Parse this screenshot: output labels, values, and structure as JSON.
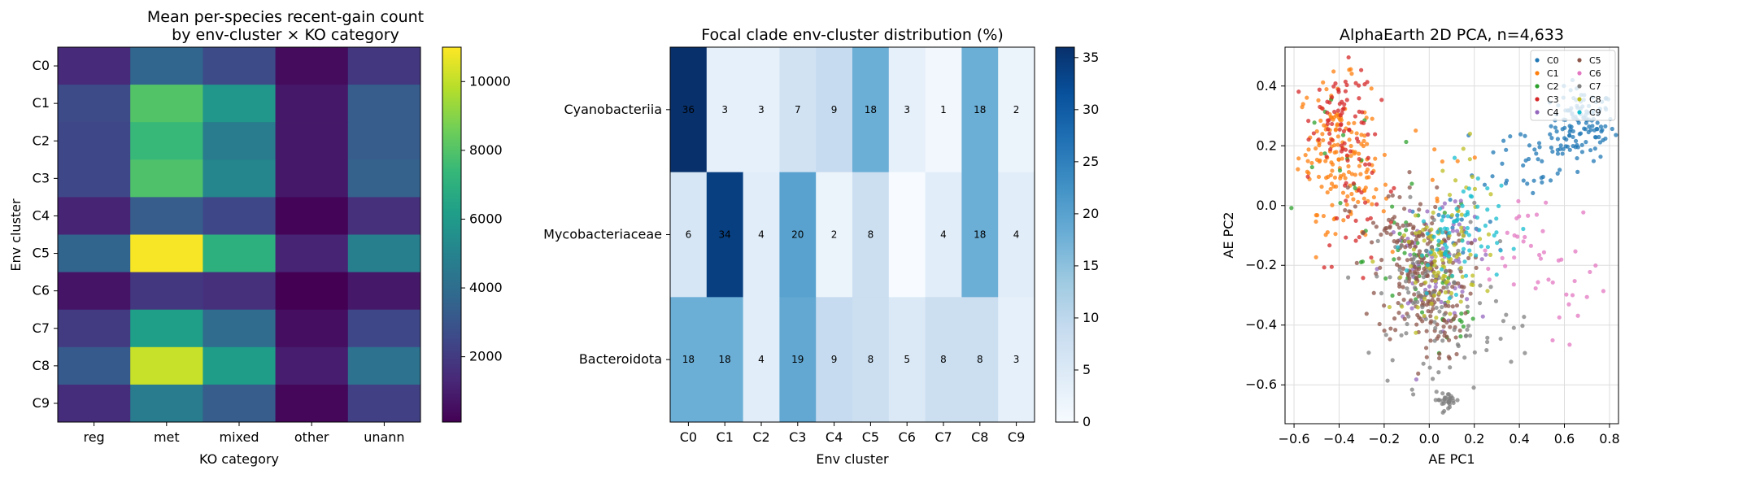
{
  "chart_data": [
    {
      "type": "heatmap",
      "title": "Mean per-species recent-gain count\nby env-cluster × KO category",
      "xlabel": "KO category",
      "ylabel": "Env cluster",
      "x_categories": [
        "reg",
        "met",
        "mixed",
        "other",
        "unann"
      ],
      "y_categories": [
        "C0",
        "C1",
        "C2",
        "C3",
        "C4",
        "C5",
        "C6",
        "C7",
        "C8",
        "C9"
      ],
      "values": [
        [
          1400,
          3700,
          2600,
          450,
          1900
        ],
        [
          2600,
          8000,
          5800,
          800,
          3300
        ],
        [
          2500,
          7400,
          4600,
          800,
          3300
        ],
        [
          2500,
          7900,
          5100,
          800,
          3500
        ],
        [
          1200,
          3300,
          2500,
          200,
          1600
        ],
        [
          3600,
          10900,
          7000,
          1200,
          4800
        ],
        [
          700,
          1900,
          1600,
          100,
          800
        ],
        [
          2000,
          6200,
          3900,
          500,
          2500
        ],
        [
          3200,
          10100,
          6100,
          1000,
          4200
        ],
        [
          1500,
          4600,
          3300,
          300,
          2200
        ]
      ],
      "colormap": "viridis",
      "colorbar_range": [
        100,
        11000
      ],
      "colorbar_ticks": [
        "2000",
        "4000",
        "6000",
        "8000",
        "10000"
      ]
    },
    {
      "type": "heatmap",
      "title": "Focal clade env-cluster distribution (%)",
      "xlabel": "Env cluster",
      "ylabel": "",
      "x_categories": [
        "C0",
        "C1",
        "C2",
        "C3",
        "C4",
        "C5",
        "C6",
        "C7",
        "C8",
        "C9"
      ],
      "y_categories": [
        "Cyanobacteriia",
        "Mycobacteriaceae",
        "Bacteroidota"
      ],
      "values": [
        [
          36,
          3,
          3,
          7,
          9,
          18,
          3,
          1,
          18,
          2
        ],
        [
          6,
          34,
          4,
          20,
          2,
          8,
          0,
          4,
          18,
          4
        ],
        [
          18,
          18,
          4,
          19,
          9,
          8,
          5,
          8,
          8,
          3
        ]
      ],
      "cell_labels": [
        [
          "36",
          "3",
          "3",
          "7",
          "9",
          "18",
          "3",
          "1",
          "18",
          "2"
        ],
        [
          "6",
          "34",
          "4",
          "20",
          "2",
          "8",
          "",
          "4",
          "18",
          "4"
        ],
        [
          "18",
          "18",
          "4",
          "19",
          "9",
          "8",
          "5",
          "8",
          "8",
          "3"
        ]
      ],
      "colormap": "Blues",
      "colorbar_range": [
        0,
        36
      ],
      "colorbar_ticks": [
        "0",
        "5",
        "10",
        "15",
        "20",
        "25",
        "30",
        "35"
      ]
    },
    {
      "type": "scatter",
      "title": "AlphaEarth 2D PCA, n=4,633",
      "xlabel": "AE PC1",
      "ylabel": "AE PC2",
      "xlim": [
        -0.64,
        0.84
      ],
      "ylim": [
        -0.73,
        0.53
      ],
      "x_ticks": [
        "−0.6",
        "−0.4",
        "−0.2",
        "0.0",
        "0.2",
        "0.4",
        "0.6",
        "0.8"
      ],
      "y_ticks": [
        "−0.6",
        "−0.4",
        "−0.2",
        "0.0",
        "0.2",
        "0.4"
      ],
      "grid": true,
      "legend_position": "top-right",
      "series": [
        {
          "name": "C0",
          "color": "#1f77b4",
          "clusters": [
            {
              "cx": 0.68,
              "cy": 0.27,
              "sx": 0.07,
              "sy": 0.06,
              "n": 120
            },
            {
              "cx": 0.45,
              "cy": 0.16,
              "sx": 0.12,
              "sy": 0.07,
              "n": 40
            },
            {
              "cx": 0.1,
              "cy": -0.05,
              "sx": 0.1,
              "sy": 0.08,
              "n": 14
            }
          ]
        },
        {
          "name": "C1",
          "color": "#ff7f0e",
          "clusters": [
            {
              "cx": -0.42,
              "cy": 0.2,
              "sx": 0.08,
              "sy": 0.11,
              "n": 130
            },
            {
              "cx": -0.32,
              "cy": 0.05,
              "sx": 0.07,
              "sy": 0.08,
              "n": 40
            },
            {
              "cx": 0.08,
              "cy": 0.15,
              "sx": 0.1,
              "sy": 0.12,
              "n": 8
            }
          ]
        },
        {
          "name": "C2",
          "color": "#2ca02c",
          "clusters": [
            {
              "cx": -0.05,
              "cy": -0.18,
              "sx": 0.12,
              "sy": 0.12,
              "n": 40
            },
            {
              "cx": 0.1,
              "cy": -0.42,
              "sx": 0.06,
              "sy": 0.05,
              "n": 12
            },
            {
              "cx": -0.4,
              "cy": 0.1,
              "sx": 0.08,
              "sy": 0.12,
              "n": 15
            }
          ]
        },
        {
          "name": "C3",
          "color": "#d62728",
          "clusters": [
            {
              "cx": -0.38,
              "cy": 0.3,
              "sx": 0.07,
              "sy": 0.08,
              "n": 70
            },
            {
              "cx": -0.3,
              "cy": 0.0,
              "sx": 0.1,
              "sy": 0.1,
              "n": 30
            }
          ]
        },
        {
          "name": "C4",
          "color": "#9467bd",
          "clusters": [
            {
              "cx": 0.0,
              "cy": -0.22,
              "sx": 0.1,
              "sy": 0.09,
              "n": 60
            },
            {
              "cx": 0.1,
              "cy": -0.1,
              "sx": 0.08,
              "sy": 0.07,
              "n": 20
            }
          ]
        },
        {
          "name": "C5",
          "color": "#8c564b",
          "clusters": [
            {
              "cx": -0.03,
              "cy": -0.22,
              "sx": 0.1,
              "sy": 0.12,
              "n": 190
            },
            {
              "cx": 0.05,
              "cy": -0.42,
              "sx": 0.05,
              "sy": 0.06,
              "n": 30
            },
            {
              "cx": -0.2,
              "cy": -0.05,
              "sx": 0.08,
              "sy": 0.08,
              "n": 30
            }
          ]
        },
        {
          "name": "C6",
          "color": "#e377c2",
          "clusters": [
            {
              "cx": 0.6,
              "cy": -0.28,
              "sx": 0.1,
              "sy": 0.12,
              "n": 25
            },
            {
              "cx": 0.45,
              "cy": -0.1,
              "sx": 0.08,
              "sy": 0.06,
              "n": 10
            },
            {
              "cx": 0.3,
              "cy": -0.2,
              "sx": 0.08,
              "sy": 0.06,
              "n": 8
            }
          ]
        },
        {
          "name": "C7",
          "color": "#7f7f7f",
          "clusters": [
            {
              "cx": 0.0,
              "cy": -0.3,
              "sx": 0.12,
              "sy": 0.15,
              "n": 90
            },
            {
              "cx": 0.08,
              "cy": -0.65,
              "sx": 0.03,
              "sy": 0.012,
              "n": 30
            },
            {
              "cx": 0.25,
              "cy": -0.4,
              "sx": 0.1,
              "sy": 0.08,
              "n": 20
            }
          ]
        },
        {
          "name": "C8",
          "color": "#bcbd22",
          "clusters": [
            {
              "cx": 0.05,
              "cy": -0.2,
              "sx": 0.08,
              "sy": 0.08,
              "n": 80
            },
            {
              "cx": 0.2,
              "cy": 0.0,
              "sx": 0.08,
              "sy": 0.1,
              "n": 20
            }
          ]
        },
        {
          "name": "C9",
          "color": "#17becf",
          "clusters": [
            {
              "cx": 0.1,
              "cy": -0.12,
              "sx": 0.1,
              "sy": 0.08,
              "n": 55
            },
            {
              "cx": 0.2,
              "cy": -0.02,
              "sx": 0.08,
              "sy": 0.08,
              "n": 20
            }
          ]
        }
      ]
    }
  ]
}
